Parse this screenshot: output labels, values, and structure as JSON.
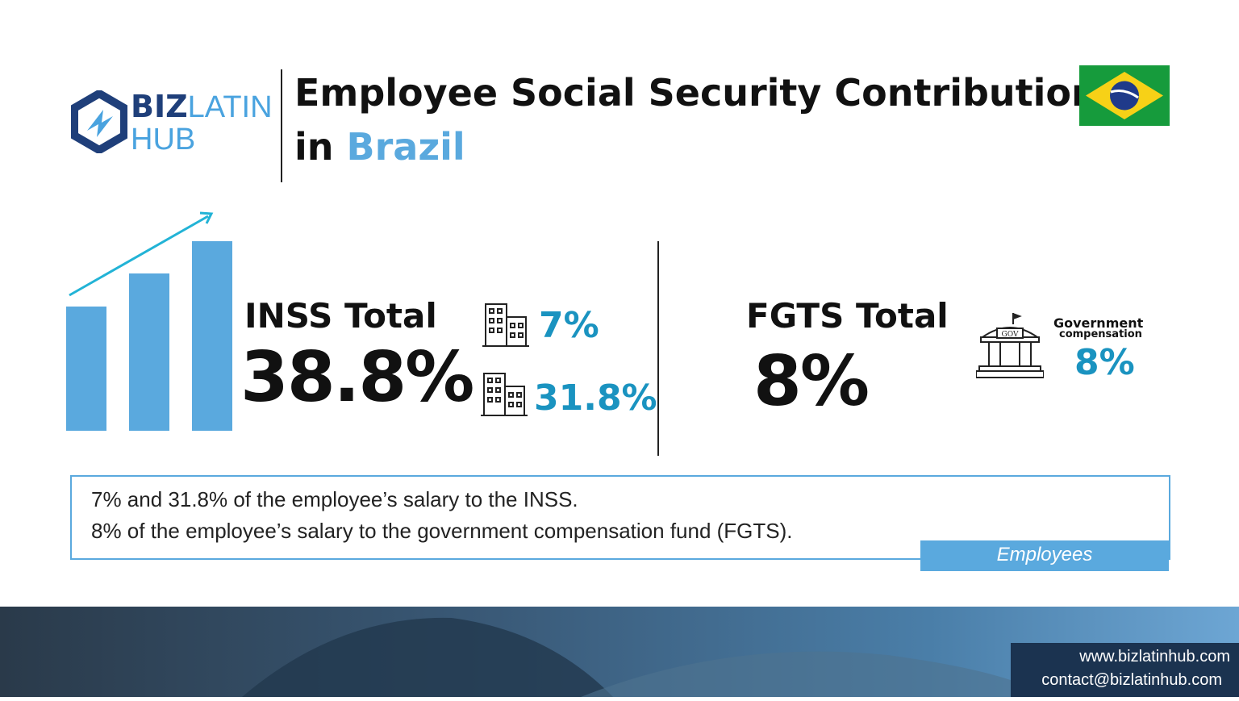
{
  "logo": {
    "biz": "BIZ",
    "latin": "LATIN",
    "hub": "HUB"
  },
  "header": {
    "title_line1": "Employee Social Security Contributions",
    "title_in": "in",
    "title_country": "Brazil"
  },
  "inss": {
    "label": "INSS Total",
    "value": "38.8%",
    "items": [
      "7%",
      "31.8%"
    ]
  },
  "fgts": {
    "label": "FGTS Total",
    "value": "8%"
  },
  "government": {
    "line1": "Government",
    "line2": "compensation",
    "value": "8%"
  },
  "notes": {
    "lines": [
      "7% and 31.8% of the employee’s salary to the INSS.",
      "8% of the employee’s salary to the government compensation fund (FGTS)."
    ],
    "tag": "Employees"
  },
  "footer": {
    "website": "www.bizlatinhub.com",
    "email": "contact@bizlatinhub.com"
  }
}
